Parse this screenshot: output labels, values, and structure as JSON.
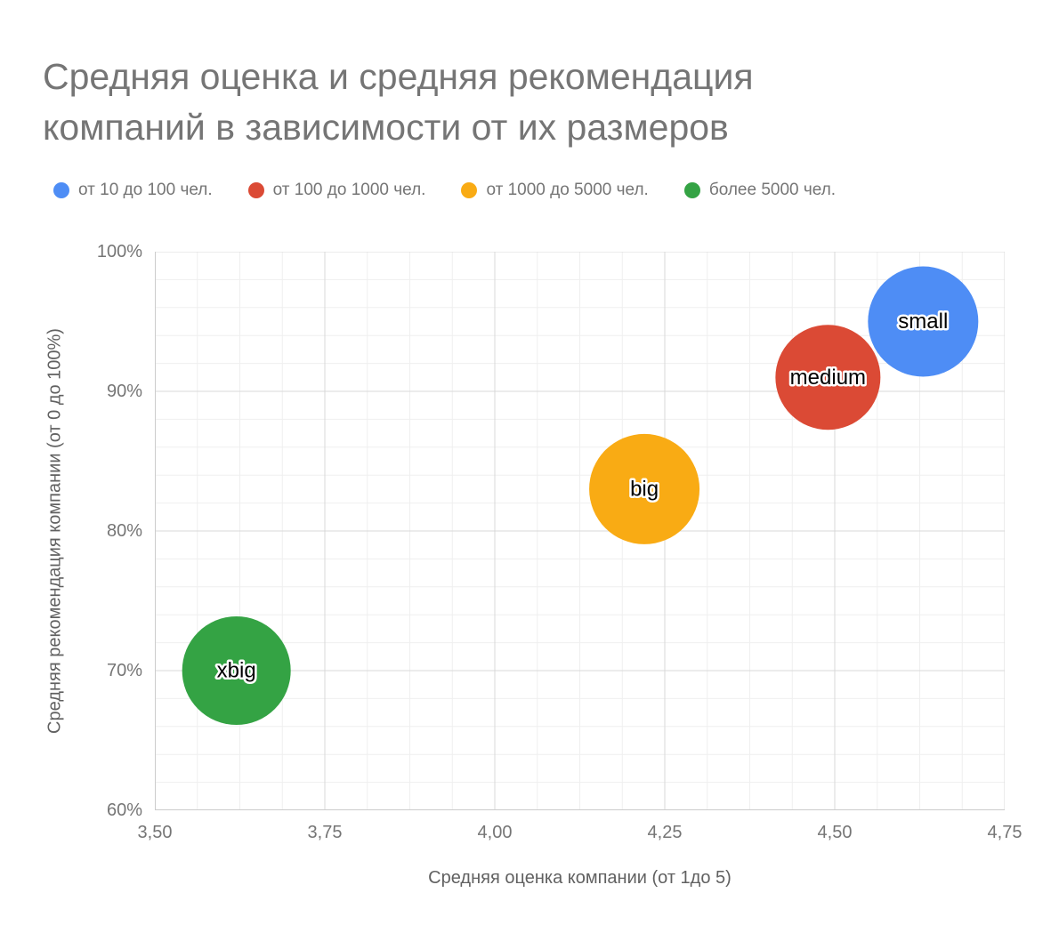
{
  "title": {
    "line1": "Средняя оценка и средняя рекомендация",
    "line2": "компаний в зависимости от их размеров"
  },
  "legend": [
    {
      "label": "от 10 до 100 чел.",
      "color": "#4e8df5"
    },
    {
      "label": "от 100 до 1000 чел.",
      "color": "#db4a35"
    },
    {
      "label": "от 1000 до 5000 чел.",
      "color": "#f9ab14"
    },
    {
      "label": "более 5000 чел.",
      "color": "#34a344"
    }
  ],
  "chart_data": {
    "type": "scatter",
    "subtype": "bubble",
    "title": "Средняя оценка и средняя рекомендация компаний в зависимости от их размеров",
    "xlabel": "Средняя оценка компании (от 1до 5)",
    "ylabel": "Средняя рекомендация компании (от 0 до 100%)",
    "xlim": [
      3.5,
      4.75
    ],
    "ylim": [
      60,
      100
    ],
    "grid": "on",
    "legend_position": "top",
    "x_ticks": [
      {
        "value": 3.5,
        "label": "3,50"
      },
      {
        "value": 3.75,
        "label": "3,75"
      },
      {
        "value": 4.0,
        "label": "4,00"
      },
      {
        "value": 4.25,
        "label": "4,25"
      },
      {
        "value": 4.5,
        "label": "4,50"
      },
      {
        "value": 4.75,
        "label": "4,75"
      }
    ],
    "y_ticks": [
      {
        "value": 60,
        "label": "60%"
      },
      {
        "value": 70,
        "label": "70%"
      },
      {
        "value": 80,
        "label": "80%"
      },
      {
        "value": 90,
        "label": "90%"
      },
      {
        "value": 100,
        "label": "100%"
      }
    ],
    "series": [
      {
        "name": "от 10 до 100 чел.",
        "label": "small",
        "x": 4.63,
        "y": 95,
        "radius_px": 62,
        "color": "#4e8df5"
      },
      {
        "name": "от 100 до 1000 чел.",
        "label": "medium",
        "x": 4.49,
        "y": 91,
        "radius_px": 59,
        "color": "#db4a35"
      },
      {
        "name": "от 1000 до 5000 чел.",
        "label": "big",
        "x": 4.22,
        "y": 83,
        "radius_px": 62,
        "color": "#f9ab14"
      },
      {
        "name": "более 5000 чел.",
        "label": "xbig",
        "x": 3.62,
        "y": 70,
        "radius_px": 61,
        "color": "#34a344"
      }
    ]
  }
}
